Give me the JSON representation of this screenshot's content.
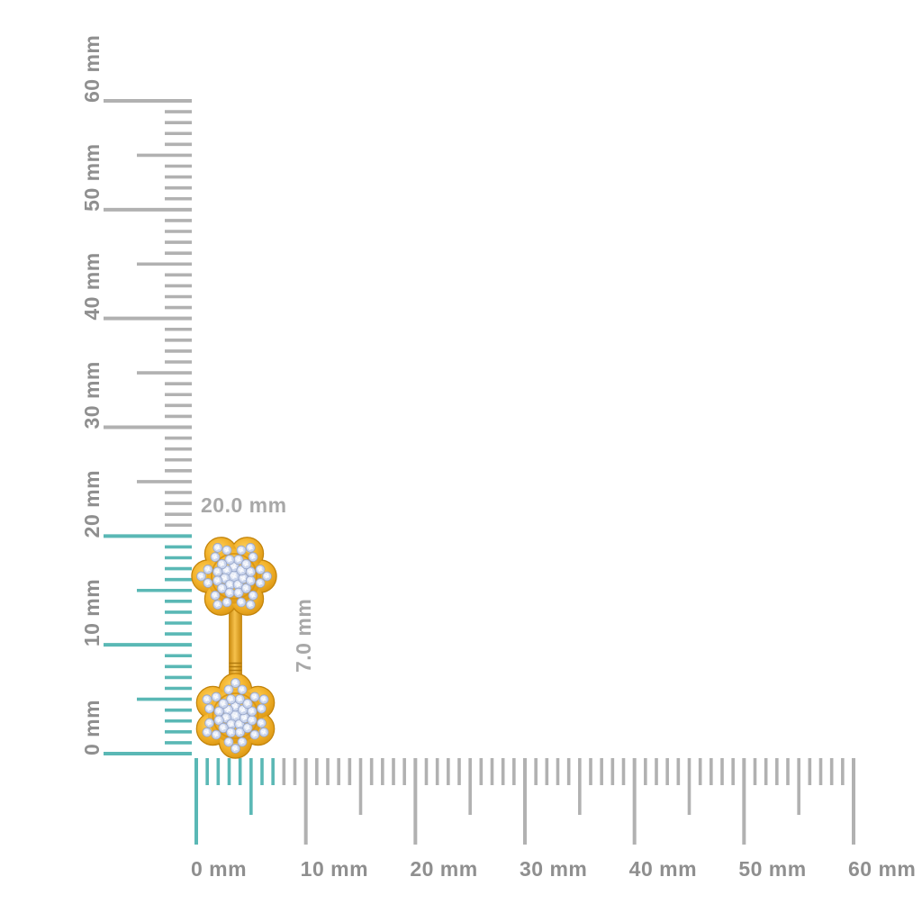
{
  "canvas": {
    "background": "#ffffff"
  },
  "product": {
    "description": "Two pave diamond flower clusters joined by a vertical gold bar (earring)",
    "height_mm": 20.0,
    "width_mm": 7.0
  },
  "annotations": {
    "height": {
      "text": "20.0 mm"
    },
    "width": {
      "text": "7.0 mm"
    },
    "color": "#a8a8a8"
  },
  "rulers": {
    "unit": "mm",
    "colors": {
      "tick": "#b1b1b1",
      "highlight": "#5ab8b5",
      "label": "#8f8f8f"
    },
    "vertical": {
      "min_mm": 0,
      "max_mm": 60,
      "highlight_from_mm": 0,
      "highlight_to_mm": 20,
      "labels": [
        {
          "mm": 0,
          "text": "0 mm"
        },
        {
          "mm": 10,
          "text": "10 mm"
        },
        {
          "mm": 20,
          "text": "20 mm"
        },
        {
          "mm": 30,
          "text": "30 mm"
        },
        {
          "mm": 40,
          "text": "40 mm"
        },
        {
          "mm": 50,
          "text": "50 mm"
        },
        {
          "mm": 60,
          "text": "60 mm"
        }
      ]
    },
    "horizontal": {
      "min_mm": 0,
      "max_mm": 60,
      "highlight_from_mm": 0,
      "highlight_to_mm": 7,
      "labels": [
        {
          "mm": 0,
          "text": "0 mm"
        },
        {
          "mm": 10,
          "text": "10 mm"
        },
        {
          "mm": 20,
          "text": "20 mm"
        },
        {
          "mm": 30,
          "text": "30 mm"
        },
        {
          "mm": 40,
          "text": "40 mm"
        },
        {
          "mm": 50,
          "text": "50 mm"
        },
        {
          "mm": 60,
          "text": "60 mm"
        }
      ]
    }
  },
  "jewelry": {
    "colors": {
      "gold_light": "#fdd567",
      "gold_mid": "#f3b32c",
      "gold_dark": "#d89310",
      "gold_outline": "#c2830a",
      "ridge": "#a87208",
      "stone_base": "#c9d4ec",
      "stone_edge": "#94a3c7",
      "stone_light": "#eaeef8",
      "sparkle": "#ffffff"
    }
  }
}
